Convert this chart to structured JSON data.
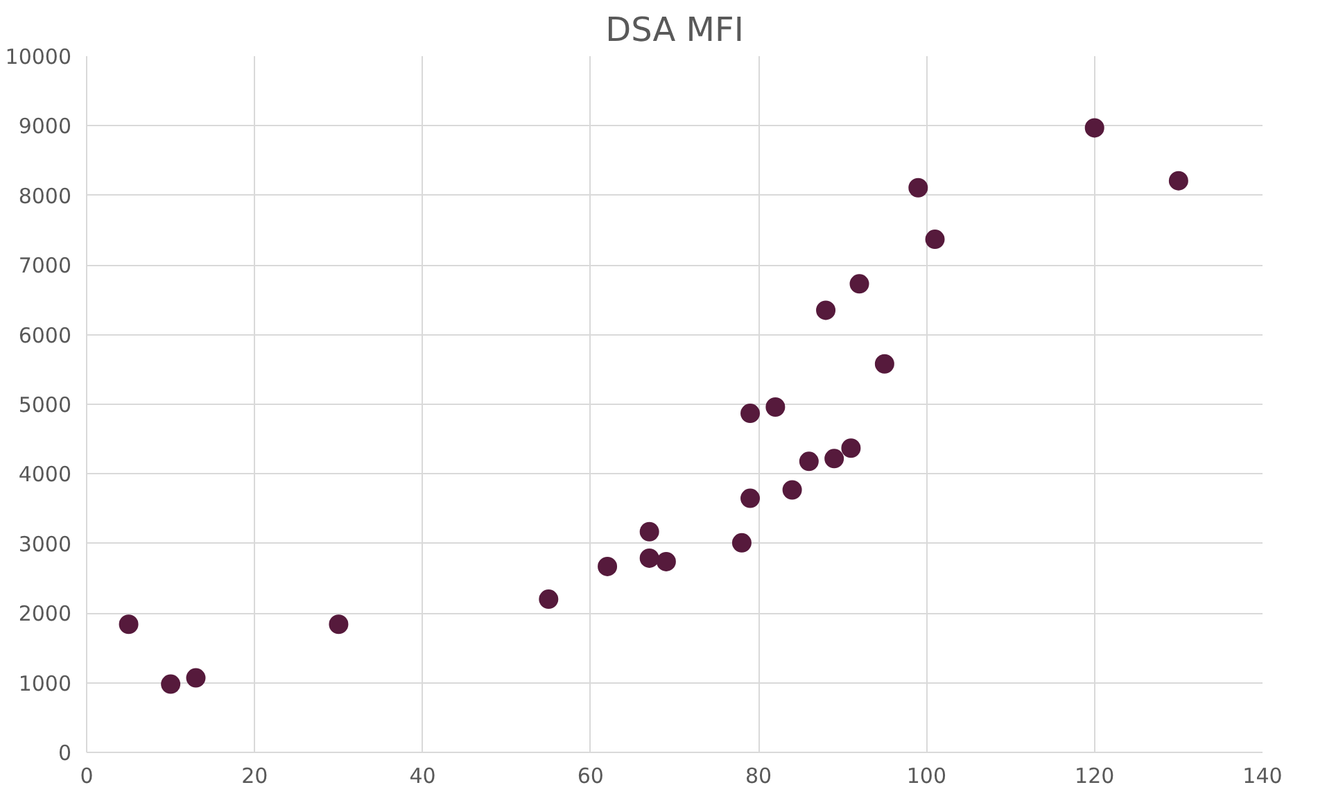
{
  "chart_data": {
    "type": "scatter",
    "title": "DSA MFI",
    "x": [
      5,
      10,
      13,
      30,
      55,
      62,
      67,
      67,
      69,
      78,
      79,
      79,
      82,
      84,
      86,
      89,
      91,
      88,
      92,
      95,
      99,
      101,
      120,
      130
    ],
    "series": [
      {
        "color": "#561a3c",
        "values": [
          1840,
          980,
          1070,
          1840,
          2200,
          2670,
          3170,
          2790,
          2740,
          3010,
          3650,
          4870,
          4960,
          3770,
          4180,
          4220,
          4370,
          6350,
          6730,
          5580,
          8110,
          7370,
          8970,
          8210
        ]
      }
    ],
    "xlim": [
      0,
      140
    ],
    "xticks": [
      0,
      20,
      40,
      60,
      80,
      100,
      120,
      140
    ],
    "ylim": [
      0,
      10000
    ],
    "yticks": [
      0,
      1000,
      2000,
      3000,
      4000,
      5000,
      6000,
      7000,
      8000,
      9000,
      10000
    ],
    "grid": true,
    "marker": "circle"
  }
}
